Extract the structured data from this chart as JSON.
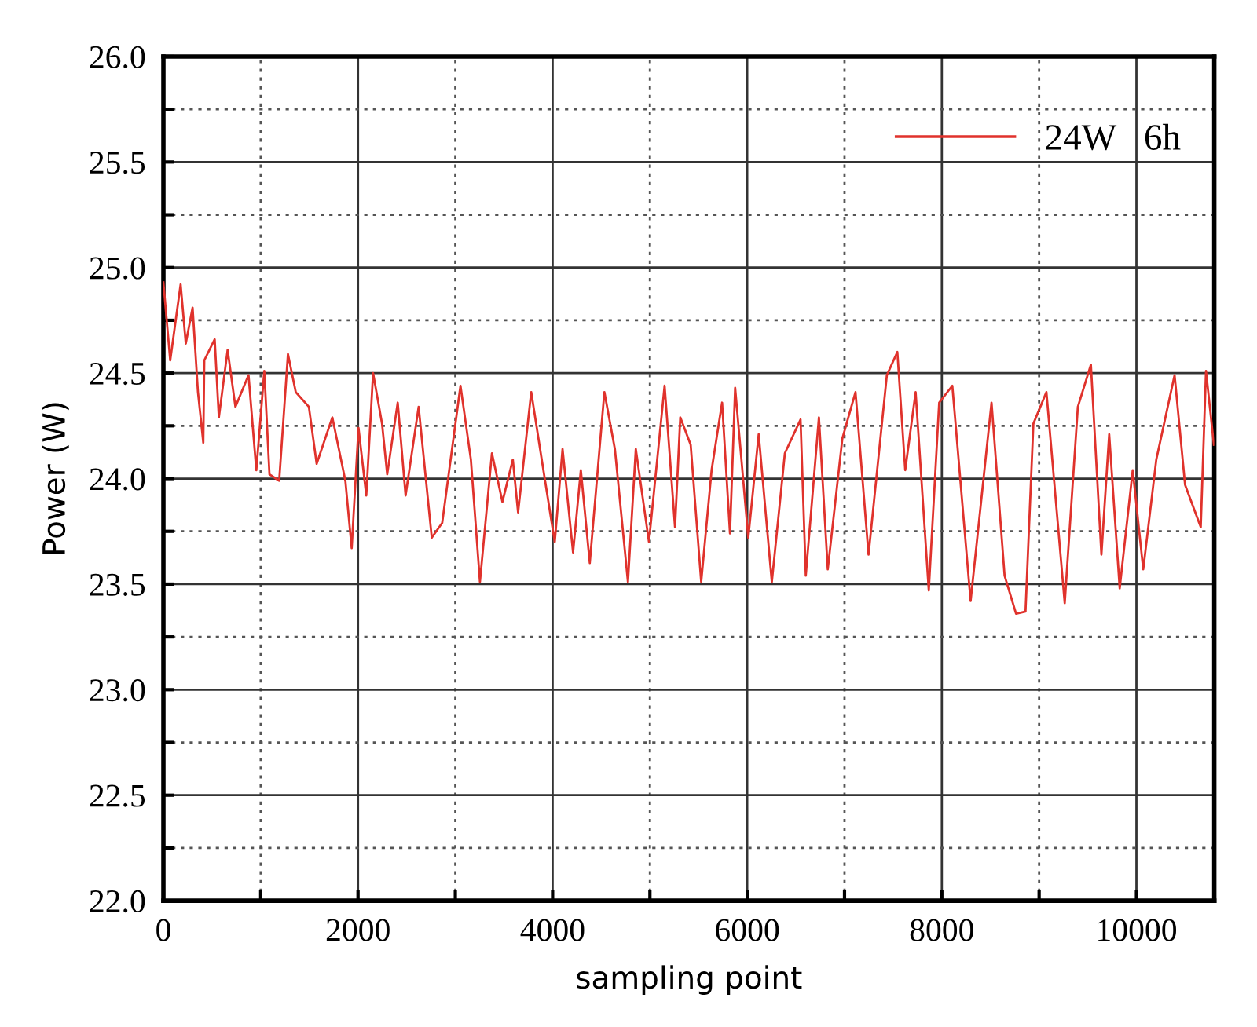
{
  "chart_data": {
    "type": "line",
    "xlabel": "sampling point",
    "ylabel": "Power (W)",
    "xlim": [
      0,
      10800
    ],
    "ylim": [
      22.0,
      26.0
    ],
    "xticks": [
      0,
      {
        "value": 1000,
        "label": null
      },
      2000,
      {
        "value": 3000,
        "label": null
      },
      4000,
      {
        "value": 5000,
        "label": null
      },
      6000,
      {
        "value": 7000,
        "label": null
      },
      8000,
      {
        "value": 9000,
        "label": null
      },
      10000
    ],
    "yticks": [
      {
        "value": 22.0,
        "label": "22.0"
      },
      {
        "value": 22.25,
        "label": null
      },
      {
        "value": 22.5,
        "label": "22.5"
      },
      {
        "value": 22.75,
        "label": null
      },
      {
        "value": 23.0,
        "label": "23.0"
      },
      {
        "value": 23.25,
        "label": null
      },
      {
        "value": 23.5,
        "label": "23.5"
      },
      {
        "value": 23.75,
        "label": null
      },
      {
        "value": 24.0,
        "label": "24.0"
      },
      {
        "value": 24.25,
        "label": null
      },
      {
        "value": 24.5,
        "label": "24.5"
      },
      {
        "value": 24.75,
        "label": null
      },
      {
        "value": 25.0,
        "label": "25.0"
      },
      {
        "value": 25.25,
        "label": null
      },
      {
        "value": 25.5,
        "label": "25.5"
      },
      {
        "value": 25.75,
        "label": null
      },
      {
        "value": 26.0,
        "label": "26.0"
      }
    ],
    "grid": true,
    "legend": "top right",
    "marker": "none",
    "line_style": "solid",
    "series": [
      {
        "name": "24W   6h",
        "color": "#e0322c",
        "x": [
          0,
          70,
          177,
          230,
          300,
          355,
          410,
          420,
          527,
          570,
          660,
          740,
          875,
          955,
          1037,
          1090,
          1190,
          1280,
          1360,
          1495,
          1575,
          1736,
          1870,
          1935,
          2005,
          2085,
          2155,
          2247,
          2300,
          2408,
          2489,
          2623,
          2758,
          2865,
          3053,
          3160,
          3253,
          3376,
          3484,
          3591,
          3645,
          3780,
          3888,
          4022,
          4102,
          4210,
          4290,
          4382,
          4532,
          4640,
          4774,
          4855,
          4990,
          5151,
          5258,
          5312,
          5419,
          5527,
          5634,
          5742,
          5823,
          5876,
          6011,
          6118,
          6253,
          6387,
          6548,
          6602,
          6737,
          6828,
          6978,
          7113,
          7247,
          7435,
          7543,
          7624,
          7731,
          7866,
          7973,
          8108,
          8296,
          8511,
          8645,
          8763,
          8860,
          8941,
          9075,
          9263,
          9398,
          9532,
          9640,
          9720,
          9828,
          9962,
          10070,
          10204,
          10392,
          10500,
          10661,
          10715,
          10796
        ],
        "values": [
          24.93,
          24.56,
          24.92,
          24.64,
          24.81,
          24.41,
          24.17,
          24.56,
          24.66,
          24.29,
          24.61,
          24.34,
          24.49,
          24.04,
          24.51,
          24.02,
          23.99,
          24.59,
          24.41,
          24.34,
          24.07,
          24.29,
          23.99,
          23.67,
          24.24,
          23.92,
          24.5,
          24.26,
          24.02,
          24.36,
          23.92,
          24.34,
          23.72,
          23.79,
          24.44,
          24.09,
          23.51,
          24.12,
          23.89,
          24.09,
          23.84,
          24.41,
          24.09,
          23.7,
          24.14,
          23.65,
          24.04,
          23.6,
          24.41,
          24.14,
          23.51,
          24.14,
          23.7,
          24.44,
          23.77,
          24.29,
          24.16,
          23.51,
          24.04,
          24.36,
          23.74,
          24.43,
          23.72,
          24.21,
          23.51,
          24.12,
          24.28,
          23.54,
          24.29,
          23.57,
          24.19,
          24.41,
          23.64,
          24.49,
          24.6,
          24.04,
          24.41,
          23.47,
          24.36,
          24.44,
          23.42,
          24.36,
          23.54,
          23.36,
          23.37,
          24.26,
          24.41,
          23.41,
          24.34,
          24.54,
          23.64,
          24.21,
          23.48,
          24.04,
          23.57,
          24.09,
          24.49,
          23.97,
          23.77,
          24.51,
          24.16
        ]
      }
    ]
  }
}
